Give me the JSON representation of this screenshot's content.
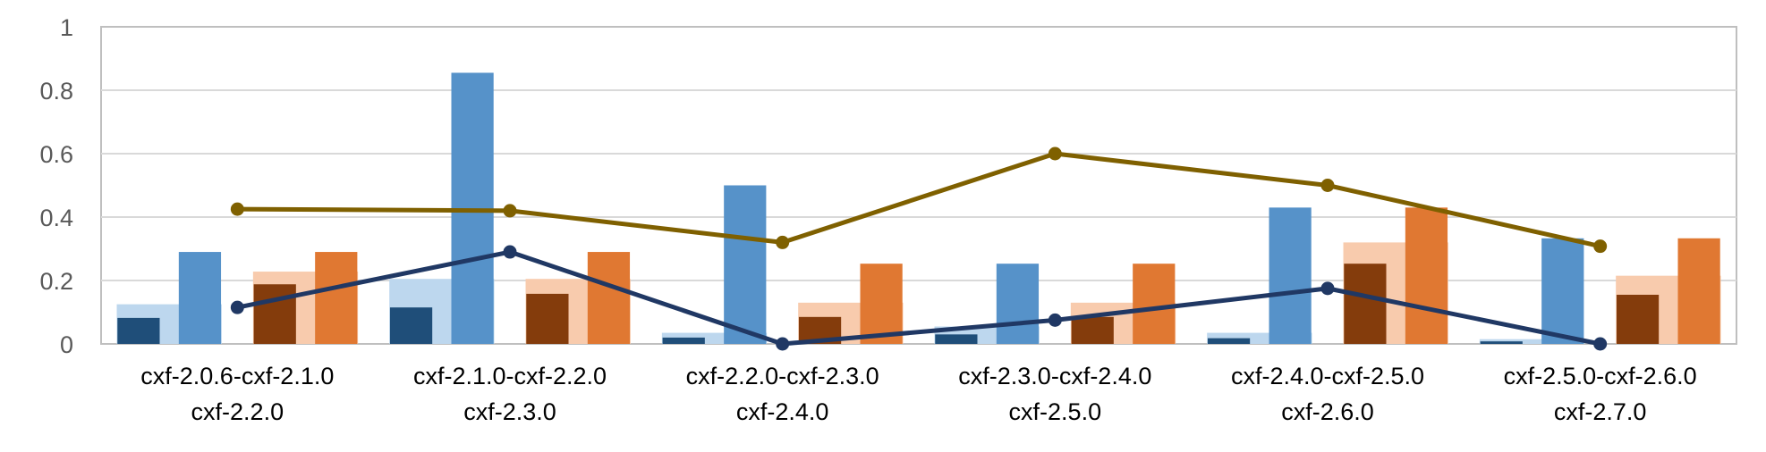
{
  "chart_data": {
    "type": "bar",
    "categories": [
      [
        "cxf-2.0.6-cxf-2.1.0",
        "cxf-2.2.0"
      ],
      [
        "cxf-2.1.0-cxf-2.2.0",
        "cxf-2.3.0"
      ],
      [
        "cxf-2.2.0-cxf-2.3.0",
        "cxf-2.4.0"
      ],
      [
        "cxf-2.3.0-cxf-2.4.0",
        "cxf-2.5.0"
      ],
      [
        "cxf-2.4.0-cxf-2.5.0",
        "cxf-2.6.0"
      ],
      [
        "cxf-2.5.0-cxf-2.6.0",
        "cxf-2.7.0"
      ]
    ],
    "ylim": [
      0,
      1
    ],
    "yticks": [
      "0",
      "0.2",
      "0.4",
      "0.6",
      "0.8",
      "1"
    ],
    "grid": true,
    "colors": {
      "blue_light": "#bdd7ee",
      "blue_dark": "#1f4e79",
      "blue_mid": "#5692c9",
      "orange_light": "#f8cbad",
      "orange_dark": "#843c0c",
      "orange_mid": "#e07832",
      "line_blue": "#203864",
      "line_gold": "#7f6000",
      "gridline": "#d9d9d9",
      "plot_border": "#bfbfbf"
    },
    "groups": [
      {
        "color_key": "blue",
        "background": [
          0.125,
          0.205,
          0.035,
          0.055,
          0.035,
          0.015
        ],
        "front_left": [
          0.082,
          0.115,
          0.02,
          0.03,
          0.018,
          0.008
        ],
        "front_right": [
          0.29,
          0.855,
          0.5,
          0.253,
          0.43,
          0.333
        ]
      },
      {
        "color_key": "orange",
        "background": [
          0.228,
          0.205,
          0.13,
          0.13,
          0.32,
          0.215
        ],
        "front_left": [
          0.188,
          0.158,
          0.085,
          0.085,
          0.253,
          0.155
        ],
        "front_right": [
          0.29,
          0.29,
          0.253,
          0.253,
          0.43,
          0.333
        ]
      }
    ],
    "lines": [
      {
        "color_key": "line_blue",
        "values": [
          0.115,
          0.29,
          0.0,
          0.075,
          0.175,
          0.0
        ]
      },
      {
        "color_key": "line_gold",
        "values": [
          0.425,
          0.42,
          0.32,
          0.6,
          0.5,
          0.308
        ]
      }
    ]
  }
}
